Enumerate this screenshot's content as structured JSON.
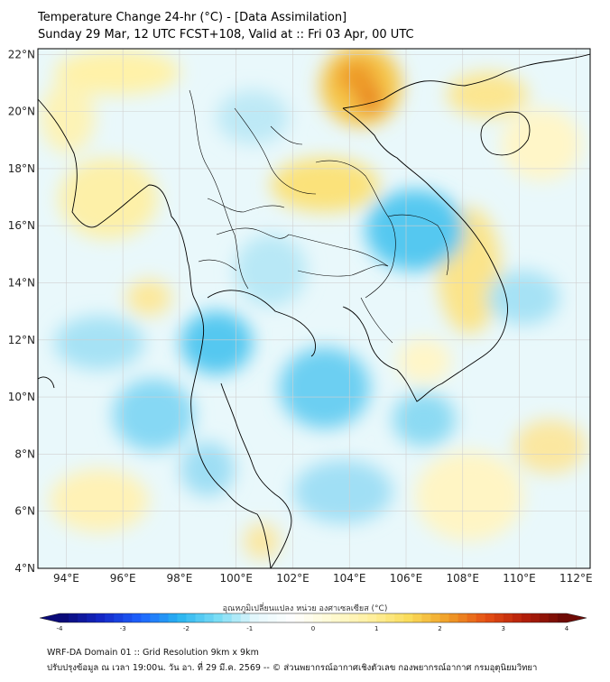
{
  "title_line1": "Temperature Change 24-hr (°C) - [Data Assimilation]",
  "title_line2": "Sunday 29 Mar, 12 UTC FCST+108, Valid at :: Fri 03 Apr, 00 UTC",
  "lat_labels": [
    "22°N",
    "20°N",
    "18°N",
    "16°N",
    "14°N",
    "12°N",
    "10°N",
    "8°N",
    "6°N",
    "4°N"
  ],
  "lon_labels": [
    "94°E",
    "96°E",
    "98°E",
    "100°E",
    "102°E",
    "104°E",
    "106°E",
    "108°E",
    "110°E",
    "112°E"
  ],
  "colorbar": {
    "title": "อุณหภูมิเปลี่ยนแปลง หน่วย องศาเซลเซียส (°C)",
    "ticks": [
      "-4",
      "-3",
      "-2",
      "-1",
      "0",
      "1",
      "2",
      "3",
      "4"
    ],
    "colors": [
      "#0a0a78",
      "#1428c8",
      "#1e64ff",
      "#28b4f0",
      "#78dcf5",
      "#e6f8fc",
      "#ffffff",
      "#fffad2",
      "#fff0a0",
      "#fadc5a",
      "#f0a028",
      "#e65014",
      "#b41e0a",
      "#6e0a05"
    ]
  },
  "footer_line1": "WRF-DA Domain 01 :: Grid Resolution 9km x 9km",
  "footer_line2": "ปรับปรุงข้อมูล ณ เวลา 19:00น. วัน อา. ที่ 29 มี.ค. 2569 -- © ส่วนพยากรณ์อากาศเชิงตัวเลข กองพยากรณ์อากาศ กรมอุตุนิยมวิทยา"
}
